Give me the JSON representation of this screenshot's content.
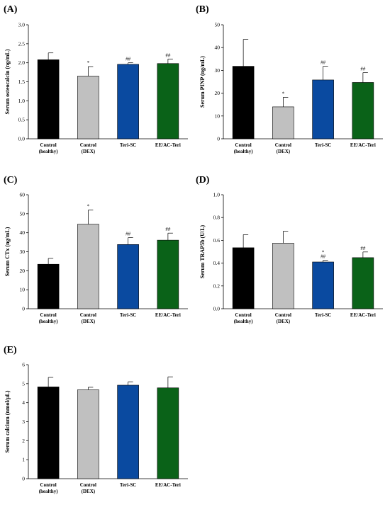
{
  "panels": [
    {
      "label": "(A)"
    },
    {
      "label": "(B)"
    },
    {
      "label": "(C)"
    },
    {
      "label": "(D)"
    },
    {
      "label": "(E)"
    }
  ],
  "chart_data": [
    {
      "type": "bar",
      "panel": "(A)",
      "ylabel": "Serum osteocalcin (ng/mL)",
      "ylim": [
        0.0,
        3.0
      ],
      "yticks": [
        "0.0",
        "0.5",
        "1.0",
        "1.5",
        "2.0",
        "2.5",
        "3.0"
      ],
      "categories": [
        [
          "Control",
          "(healthy)"
        ],
        [
          "Control",
          "(DEX)"
        ],
        [
          "Teri-SC"
        ],
        [
          "EE/AC-Teri"
        ]
      ],
      "values": [
        2.08,
        1.65,
        1.96,
        1.98
      ],
      "errors": [
        0.18,
        0.25,
        0.04,
        0.12
      ],
      "significance": [
        "",
        "*",
        "##",
        "##"
      ],
      "colors": [
        "#000000",
        "#c0c0c0",
        "#0a4aa0",
        "#0a6218"
      ],
      "grid": false
    },
    {
      "type": "bar",
      "panel": "(B)",
      "ylabel": "Serum PINP (ng/mL)",
      "ylim": [
        0,
        50
      ],
      "yticks": [
        "0",
        "10",
        "20",
        "30",
        "40",
        "50"
      ],
      "categories": [
        [
          "Control",
          "(healthy)"
        ],
        [
          "Control",
          "(DEX)"
        ],
        [
          "Teri-SC"
        ],
        [
          "EE/AC-Teri"
        ]
      ],
      "values": [
        31.8,
        14.0,
        25.8,
        24.7
      ],
      "errors": [
        11.8,
        4.2,
        6.0,
        4.3
      ],
      "significance": [
        "",
        "*",
        "##",
        "##"
      ],
      "colors": [
        "#000000",
        "#c0c0c0",
        "#0a4aa0",
        "#0a6218"
      ],
      "grid": false
    },
    {
      "type": "bar",
      "panel": "(C)",
      "ylabel": "Serum CTx (ng/mL)",
      "ylim": [
        0,
        60
      ],
      "yticks": [
        "0",
        "10",
        "20",
        "30",
        "40",
        "50",
        "60"
      ],
      "categories": [
        [
          "Control",
          "(healthy)"
        ],
        [
          "Control",
          "(DEX)"
        ],
        [
          "Teri-SC"
        ],
        [
          "EE/AC-Teri"
        ]
      ],
      "values": [
        23.4,
        44.5,
        33.8,
        36.1
      ],
      "errors": [
        3.1,
        7.4,
        3.6,
        3.7
      ],
      "significance": [
        "",
        "*",
        "##",
        "##"
      ],
      "colors": [
        "#000000",
        "#c0c0c0",
        "#0a4aa0",
        "#0a6218"
      ],
      "grid": false
    },
    {
      "type": "bar",
      "panel": "(D)",
      "ylabel": "Serum TRAP5b (U/L)",
      "ylim": [
        0.0,
        1.0
      ],
      "yticks": [
        "0.0",
        "0.2",
        "0.4",
        "0.6",
        "0.8",
        "1.0"
      ],
      "categories": [
        [
          "Control",
          "(healthy)"
        ],
        [
          "Control",
          "(DEX)"
        ],
        [
          "Teri-SC"
        ],
        [
          "EE/AC-Teri"
        ]
      ],
      "values": [
        0.535,
        0.575,
        0.41,
        0.448
      ],
      "errors": [
        0.115,
        0.105,
        0.015,
        0.05
      ],
      "significance": [
        "",
        "",
        "*\n##",
        "##"
      ],
      "colors": [
        "#000000",
        "#c0c0c0",
        "#0a4aa0",
        "#0a6218"
      ],
      "grid": false
    },
    {
      "type": "bar",
      "panel": "(E)",
      "ylabel": "Serum calcium (nmol/μL)",
      "ylim": [
        0,
        6
      ],
      "yticks": [
        "0",
        "1",
        "2",
        "3",
        "4",
        "5",
        "6"
      ],
      "categories": [
        [
          "Control",
          "(healthy)"
        ],
        [
          "Control",
          "(DEX)"
        ],
        [
          "Teri-SC"
        ],
        [
          "EE/AC-Teri"
        ]
      ],
      "values": [
        4.83,
        4.68,
        4.92,
        4.78
      ],
      "errors": [
        0.5,
        0.13,
        0.18,
        0.58
      ],
      "significance": [
        "",
        "",
        "",
        ""
      ],
      "colors": [
        "#000000",
        "#c0c0c0",
        "#0a4aa0",
        "#0a6218"
      ],
      "grid": false
    }
  ]
}
